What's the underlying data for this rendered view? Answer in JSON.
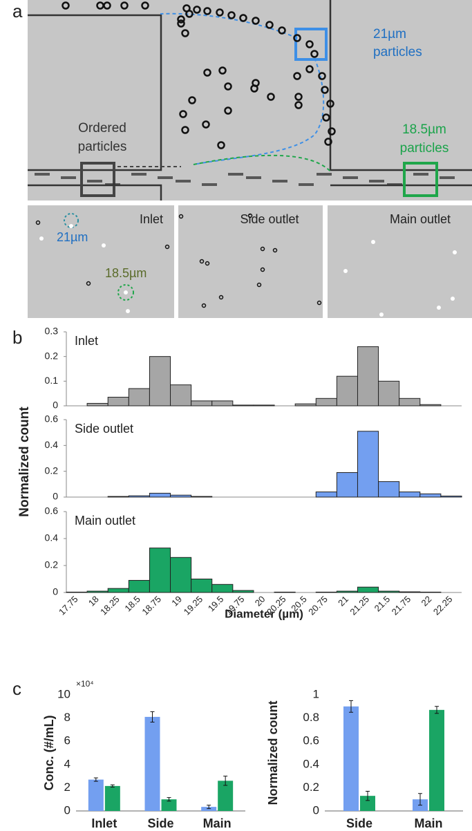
{
  "panel_labels": [
    "a",
    "b",
    "c"
  ],
  "micrograph": {
    "large_particles": [
      "21µm",
      "particles"
    ],
    "ordered": [
      "Ordered",
      "particles"
    ],
    "small_particles": [
      "18.5µm",
      "particles"
    ],
    "insets": [
      {
        "title": "Inlet",
        "annotations": [
          "21µm",
          "18.5µm"
        ]
      },
      {
        "title": "Side outlet"
      },
      {
        "title": "Main outlet"
      }
    ]
  },
  "chart_data": [
    {
      "type": "bar",
      "title": "Inlet",
      "ylabel": "Normalized count",
      "color": "#a6a6a6",
      "values": [
        0,
        0.01,
        0.035,
        0.07,
        0.2,
        0.085,
        0.02,
        0.02,
        0.003,
        0.003,
        0,
        0.008,
        0.03,
        0.12,
        0.24,
        0.1,
        0.03,
        0.005,
        0
      ],
      "ylim": [
        0,
        0.3
      ],
      "yticks": [
        0,
        0.1,
        0.2,
        0.3
      ]
    },
    {
      "type": "bar",
      "title": "Side outlet",
      "color": "#739ff0",
      "values": [
        0,
        0,
        0.005,
        0.01,
        0.03,
        0.015,
        0.005,
        0,
        0,
        0,
        0,
        0,
        0.04,
        0.19,
        0.51,
        0.12,
        0.04,
        0.025,
        0.008
      ],
      "ylim": [
        0,
        0.6
      ],
      "yticks": [
        0,
        0.2,
        0.4,
        0.6
      ]
    },
    {
      "type": "bar",
      "title": "Main outlet",
      "xlabel": "Diameter (µm)",
      "color": "#1aa564",
      "categories": [
        "17.75",
        "18",
        "18.25",
        "18.5",
        "18.75",
        "19",
        "19.25",
        "19.5",
        "19.75",
        "20",
        "20.25",
        "20.5",
        "20.75",
        "21",
        "21.25",
        "21.5",
        "21.75",
        "22",
        "22.25"
      ],
      "values": [
        0.003,
        0.01,
        0.03,
        0.09,
        0.33,
        0.26,
        0.1,
        0.06,
        0.015,
        0,
        0.003,
        0,
        0.003,
        0.01,
        0.04,
        0.01,
        0.005,
        0.003,
        0
      ],
      "ylim": [
        0,
        0.6
      ],
      "yticks": [
        0,
        0.2,
        0.4,
        0.6
      ]
    },
    {
      "type": "grouped-bar",
      "ylabel": "Conc. (#/mL)",
      "multiplier": "×10⁴",
      "categories": [
        "Inlet",
        "Side",
        "Main"
      ],
      "series": [
        {
          "color": "#739ff0",
          "values": [
            2.7,
            8.1,
            0.35
          ],
          "errors": [
            0.15,
            0.45,
            0.15
          ]
        },
        {
          "color": "#1aa564",
          "values": [
            2.15,
            1.0,
            2.6
          ],
          "errors": [
            0.1,
            0.15,
            0.4
          ]
        }
      ],
      "ylim": [
        0,
        10
      ],
      "yticks": [
        0,
        2,
        4,
        6,
        8,
        10
      ]
    },
    {
      "type": "grouped-bar",
      "ylabel": "Normalized count",
      "categories": [
        "Side",
        "Main"
      ],
      "series": [
        {
          "color": "#739ff0",
          "values": [
            0.9,
            0.1
          ],
          "errors": [
            0.05,
            0.05
          ]
        },
        {
          "color": "#1aa564",
          "values": [
            0.13,
            0.87
          ],
          "errors": [
            0.04,
            0.03
          ]
        }
      ],
      "ylim": [
        0,
        1
      ],
      "yticks": [
        0,
        0.2,
        0.4,
        0.6,
        0.8,
        1
      ]
    }
  ]
}
